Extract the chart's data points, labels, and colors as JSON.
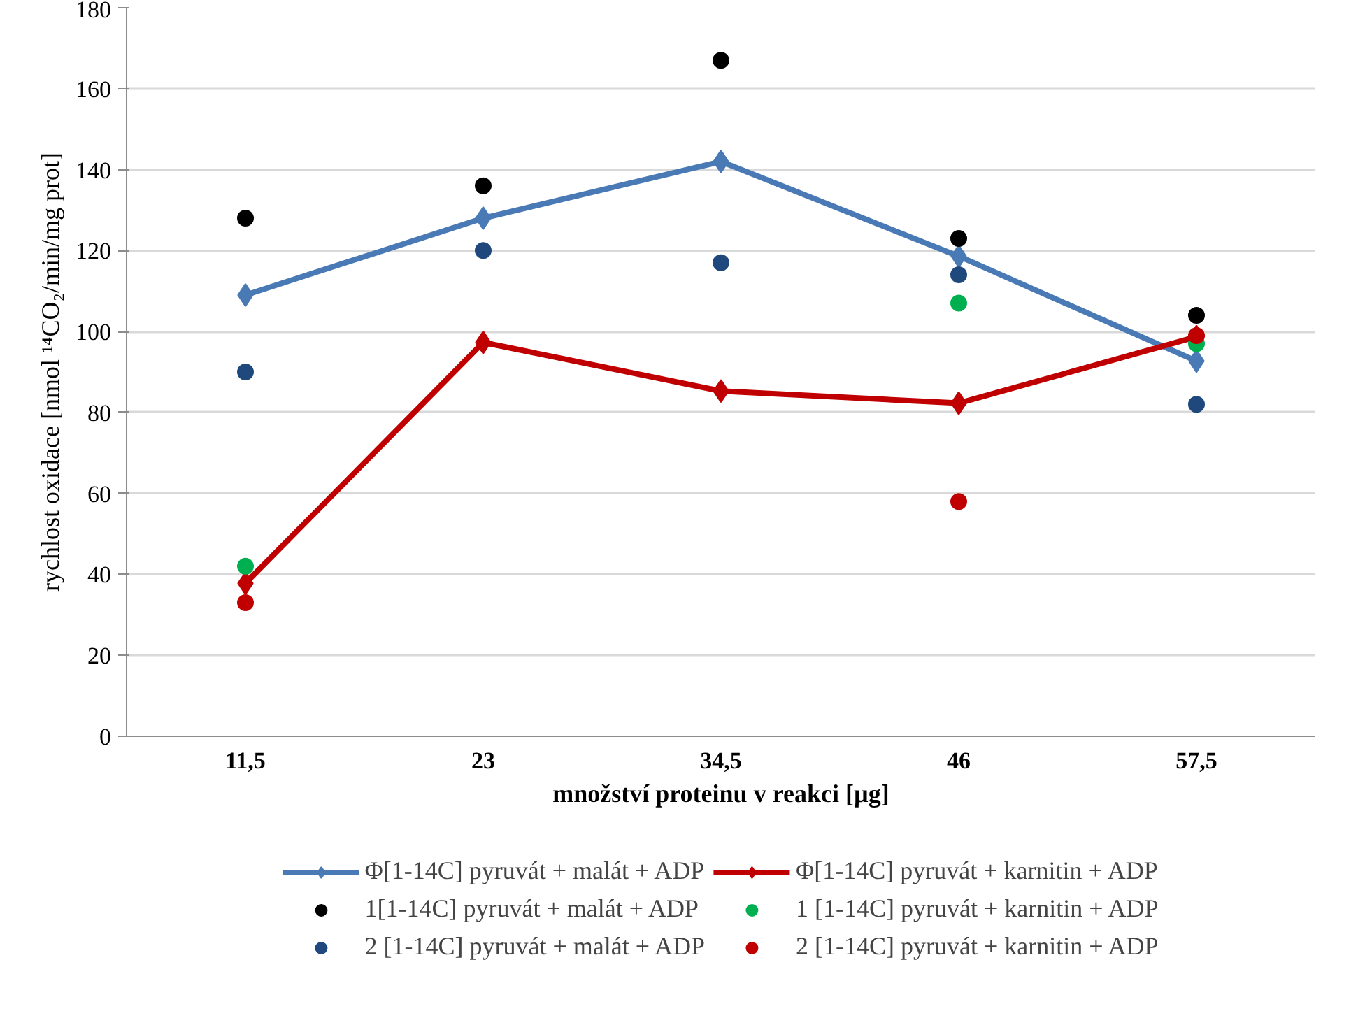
{
  "chart_data": {
    "type": "line",
    "xlabel": "množství proteinu v reakci [µg]",
    "ylabel": "rychlost oxidace [nmol ¹⁴CO₂/min/mg prot]",
    "categories": [
      "11,5",
      "23",
      "34,5",
      "46",
      "57,5"
    ],
    "ylim": [
      0,
      180
    ],
    "yticks": [
      0,
      20,
      40,
      60,
      80,
      100,
      120,
      140,
      160,
      180
    ],
    "grid": "y",
    "legend": "bottom",
    "series": [
      {
        "name": "Φ[1-14C] pyruvát + malát + ADP",
        "marker": "diamond",
        "color": "#4a7ab5",
        "values": [
          109,
          128,
          142,
          118.6,
          92.7
        ]
      },
      {
        "name": "Φ[1-14C] pyruvát + karnitin + ADP",
        "marker": "diamond",
        "color": "#c00000",
        "values": [
          37.8,
          97.3,
          85.3,
          82.3,
          98.7
        ]
      },
      {
        "name": "1[1-14C] pyruvát + malát + ADP",
        "type": "scatter",
        "marker": "circle",
        "color": "#000000",
        "values": [
          128,
          136,
          167,
          123,
          104
        ]
      },
      {
        "name": "1 [1-14C] pyruvát + karnitin + ADP",
        "type": "scatter",
        "marker": "circle",
        "color": "#00b050",
        "values": [
          42,
          null,
          null,
          107,
          97
        ]
      },
      {
        "name": "2 [1-14C] pyruvát + malát + ADP",
        "type": "scatter",
        "marker": "circle",
        "color": "#1f497d",
        "values": [
          90,
          120,
          117,
          114,
          82
        ]
      },
      {
        "name": "2 [1-14C] pyruvát + karnitin + ADP",
        "type": "scatter",
        "marker": "circle",
        "color": "#c00000",
        "values": [
          33,
          null,
          null,
          58,
          99
        ]
      }
    ]
  }
}
